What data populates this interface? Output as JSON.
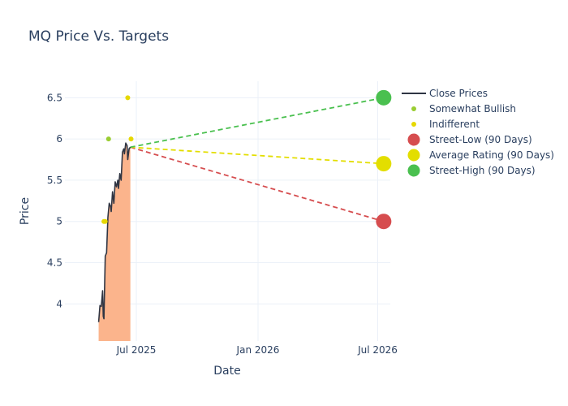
{
  "chart_data": {
    "type": "line",
    "title": "MQ Price Vs. Targets",
    "xlabel": "Date",
    "ylabel": "Price",
    "xlim": [
      "2025-03-15",
      "2026-07-20"
    ],
    "ylim": [
      3.55,
      6.7
    ],
    "x_ticks": [
      {
        "date": "2025-07-01",
        "label": "Jul 2025"
      },
      {
        "date": "2026-01-01",
        "label": "Jan 2026"
      },
      {
        "date": "2026-07-01",
        "label": "Jul 2026"
      }
    ],
    "y_ticks": [
      4,
      4.5,
      5,
      5.5,
      6,
      6.5
    ],
    "y_tick_labels": [
      "4",
      "4.5",
      "5",
      "5.5",
      "6",
      "6.5"
    ],
    "grid": true,
    "legend_position": "right",
    "series": [
      {
        "name": "Close Prices",
        "kind": "line-area",
        "color": "#2f3543",
        "fill_color": "#fbb48c",
        "points": [
          [
            "2025-05-05",
            3.78
          ],
          [
            "2025-05-07",
            3.98
          ],
          [
            "2025-05-09",
            3.97
          ],
          [
            "2025-05-11",
            4.16
          ],
          [
            "2025-05-12",
            3.85
          ],
          [
            "2025-05-13",
            3.82
          ],
          [
            "2025-05-15",
            4.58
          ],
          [
            "2025-05-17",
            4.62
          ],
          [
            "2025-05-19",
            5.05
          ],
          [
            "2025-05-21",
            5.22
          ],
          [
            "2025-05-23",
            5.18
          ],
          [
            "2025-05-24",
            5.12
          ],
          [
            "2025-05-26",
            5.36
          ],
          [
            "2025-05-28",
            5.22
          ],
          [
            "2025-05-30",
            5.48
          ],
          [
            "2025-06-01",
            5.42
          ],
          [
            "2025-06-03",
            5.5
          ],
          [
            "2025-06-04",
            5.4
          ],
          [
            "2025-06-06",
            5.58
          ],
          [
            "2025-06-08",
            5.5
          ],
          [
            "2025-06-10",
            5.84
          ],
          [
            "2025-06-12",
            5.88
          ],
          [
            "2025-06-13",
            5.82
          ],
          [
            "2025-06-15",
            5.95
          ],
          [
            "2025-06-17",
            5.92
          ],
          [
            "2025-06-18",
            5.75
          ],
          [
            "2025-06-20",
            5.88
          ],
          [
            "2025-06-22",
            5.9
          ]
        ]
      },
      {
        "name": "Somewhat Bullish",
        "kind": "markers",
        "color": "#9acd32",
        "points": [
          [
            "2025-05-20",
            6.0
          ]
        ]
      },
      {
        "name": "Indifferent",
        "kind": "markers",
        "color": "#e6d800",
        "points": [
          [
            "2025-05-13",
            5.0
          ],
          [
            "2025-05-15",
            5.0
          ],
          [
            "2025-06-18",
            6.5
          ],
          [
            "2025-06-23",
            6.0
          ]
        ]
      },
      {
        "name": "Street-Low (90 Days)",
        "kind": "target",
        "color": "#d64d4f",
        "from": [
          "2025-06-22",
          5.9
        ],
        "to": [
          "2026-07-10",
          5.0
        ]
      },
      {
        "name": "Average Rating (90 Days)",
        "kind": "target",
        "color": "#e3de00",
        "from": [
          "2025-06-22",
          5.9
        ],
        "to": [
          "2026-07-10",
          5.7
        ]
      },
      {
        "name": "Street-High (90 Days)",
        "kind": "target",
        "color": "#4ac04f",
        "from": [
          "2025-06-22",
          5.9
        ],
        "to": [
          "2026-07-10",
          6.5
        ]
      }
    ]
  }
}
